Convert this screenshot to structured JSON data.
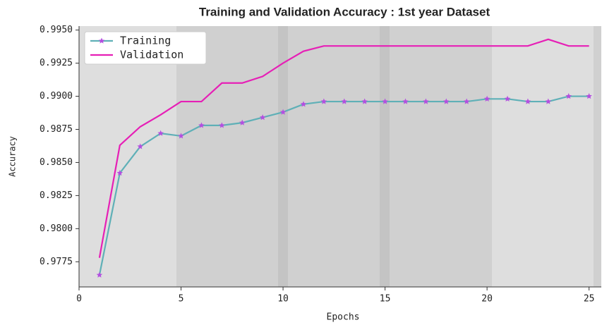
{
  "chart_data": {
    "type": "line",
    "title": "Training and Validation Accuracy : 1st year Dataset",
    "xlabel": "Epochs",
    "ylabel": "Accuracy",
    "x": [
      1,
      2,
      3,
      4,
      5,
      6,
      7,
      8,
      9,
      10,
      11,
      12,
      13,
      14,
      15,
      16,
      17,
      18,
      19,
      20,
      21,
      22,
      23,
      24,
      25
    ],
    "series": [
      {
        "name": "Training",
        "color": "#5fb0b7",
        "marker_color": "#b44fe0",
        "values": [
          0.9765,
          0.9842,
          0.9862,
          0.9872,
          0.987,
          0.9878,
          0.9878,
          0.988,
          0.9884,
          0.9888,
          0.9894,
          0.9896,
          0.9896,
          0.9896,
          0.9896,
          0.9896,
          0.9896,
          0.9896,
          0.9896,
          0.9898,
          0.9898,
          0.9896,
          0.9896,
          0.99,
          0.99
        ]
      },
      {
        "name": "Validation",
        "color": "#e61fb6",
        "values": [
          0.9778,
          0.9863,
          0.9877,
          0.9886,
          0.9896,
          0.9896,
          0.991,
          0.991,
          0.9915,
          0.9925,
          0.9934,
          0.9938,
          0.9938,
          0.9938,
          0.9938,
          0.9938,
          0.9938,
          0.9938,
          0.9938,
          0.9938,
          0.9938,
          0.9938,
          0.9943,
          0.9938,
          0.9938
        ]
      }
    ],
    "xlim": [
      0,
      25.6
    ],
    "xticks": [
      0,
      5,
      10,
      15,
      20,
      25
    ],
    "ylim": [
      0.9756,
      0.9953
    ],
    "yticks": [
      0.9775,
      {
        "value": 0.98,
        "label": "0.9800"
      },
      0.9825,
      {
        "value": 0.985,
        "label": "0.9850"
      },
      0.9875,
      {
        "value": 0.99,
        "label": "0.9900"
      },
      0.9925,
      {
        "value": 0.995,
        "label": "0.9950"
      }
    ],
    "legend": "upper left"
  }
}
